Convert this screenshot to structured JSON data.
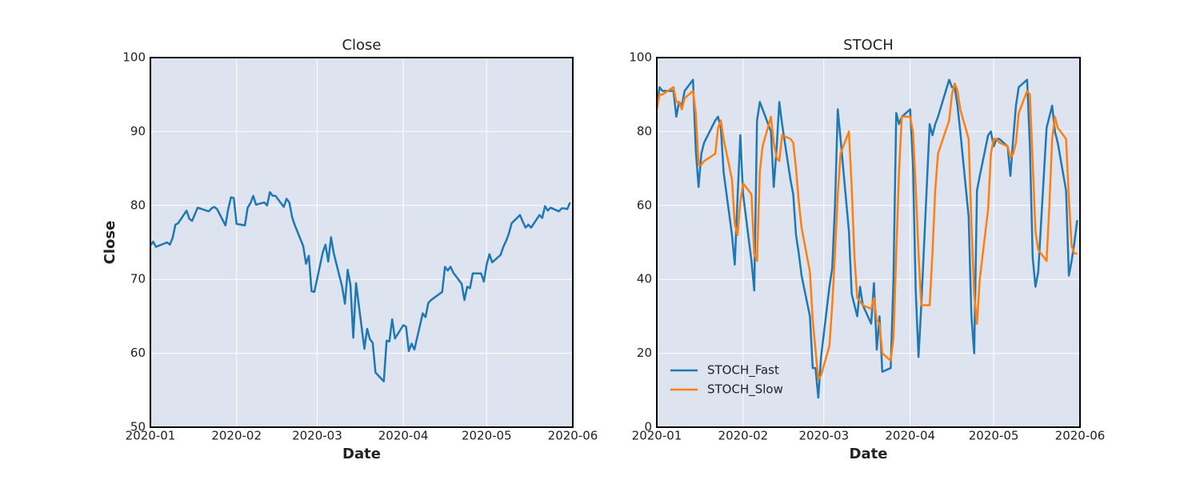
{
  "chart_data": [
    {
      "type": "line",
      "title": "Close",
      "xlabel": "Date",
      "ylabel": "Close",
      "x": [
        0,
        1,
        2,
        6,
        7,
        8,
        9,
        10,
        13,
        14,
        15,
        16,
        17,
        21,
        22,
        23,
        24,
        27,
        28,
        29,
        30,
        31,
        34,
        35,
        36,
        37,
        38,
        41,
        42,
        43,
        44,
        45,
        48,
        49,
        50,
        51,
        52,
        55,
        56,
        57,
        58,
        59,
        62,
        63,
        64,
        65,
        66,
        69,
        70,
        71,
        72,
        73,
        74,
        77,
        78,
        79,
        80,
        81,
        84,
        85,
        86,
        87,
        88,
        91,
        92,
        93,
        94,
        95,
        98,
        99,
        100,
        101,
        105,
        106,
        107,
        108,
        109,
        112,
        113,
        114,
        115,
        116,
        119,
        120,
        121,
        122,
        123,
        126,
        127,
        128,
        129,
        130,
        133,
        134,
        135,
        136,
        137,
        140,
        141,
        142,
        143,
        144,
        147,
        148,
        149,
        150,
        151
      ],
      "series": [
        {
          "name": "Close",
          "color": "#1f77b4",
          "values": [
            74.6,
            75.1,
            74.4,
            75.0,
            74.7,
            75.6,
            77.4,
            77.6,
            79.3,
            78.2,
            77.9,
            78.8,
            79.7,
            79.2,
            79.6,
            79.8,
            79.5,
            77.3,
            79.5,
            81.1,
            81.0,
            77.5,
            77.3,
            79.7,
            80.3,
            81.3,
            80.1,
            80.4,
            80.0,
            81.8,
            81.3,
            81.3,
            79.8,
            80.9,
            80.4,
            78.4,
            77.3,
            74.5,
            72.1,
            73.2,
            68.4,
            68.3,
            73.6,
            74.7,
            72.4,
            75.7,
            73.5,
            69.0,
            66.7,
            71.3,
            69.2,
            62.1,
            69.5,
            60.6,
            63.3,
            61.9,
            61.4,
            57.4,
            56.2,
            61.7,
            61.6,
            64.6,
            62.0,
            63.8,
            63.6,
            60.3,
            61.3,
            60.5,
            65.4,
            64.9,
            66.8,
            67.2,
            68.3,
            71.7,
            71.2,
            71.7,
            70.9,
            69.4,
            67.2,
            69.0,
            68.8,
            70.8,
            70.8,
            69.7,
            72.0,
            73.4,
            72.3,
            73.3,
            74.4,
            75.2,
            76.2,
            77.6,
            78.7,
            77.8,
            77.0,
            77.4,
            77.0,
            78.7,
            78.3,
            79.9,
            79.3,
            79.7,
            79.2,
            79.6,
            79.6,
            79.5,
            80.4
          ]
        }
      ],
      "xlim": [
        0,
        152
      ],
      "xticks": [
        {
          "value": 0,
          "label": "2020-01"
        },
        {
          "value": 31,
          "label": "2020-02"
        },
        {
          "value": 60,
          "label": "2020-03"
        },
        {
          "value": 91,
          "label": "2020-04"
        },
        {
          "value": 121,
          "label": "2020-05"
        },
        {
          "value": 152,
          "label": "2020-06"
        }
      ],
      "ylim": [
        50,
        100
      ],
      "yticks": [
        50,
        60,
        70,
        80,
        90,
        100
      ],
      "grid": true
    },
    {
      "type": "line",
      "title": "STOCH",
      "xlabel": "Date",
      "x": [
        0,
        1,
        2,
        6,
        7,
        8,
        9,
        10,
        13,
        14,
        15,
        16,
        17,
        21,
        22,
        23,
        24,
        27,
        28,
        29,
        30,
        31,
        34,
        35,
        36,
        37,
        38,
        41,
        42,
        43,
        44,
        45,
        48,
        49,
        50,
        51,
        52,
        55,
        56,
        57,
        58,
        59,
        62,
        63,
        64,
        65,
        66,
        69,
        70,
        71,
        72,
        73,
        74,
        77,
        78,
        79,
        80,
        81,
        84,
        85,
        86,
        87,
        88,
        91,
        92,
        93,
        94,
        95,
        98,
        99,
        100,
        101,
        105,
        106,
        107,
        108,
        109,
        112,
        113,
        114,
        115,
        116,
        119,
        120,
        121,
        122,
        123,
        126,
        127,
        128,
        129,
        130,
        133,
        134,
        135,
        136,
        137,
        140,
        141,
        142,
        143,
        144,
        147,
        148,
        149,
        150,
        151
      ],
      "series": [
        {
          "name": "STOCH_Fast",
          "color": "#1f77b4",
          "values": [
            87,
            92,
            91,
            91,
            84,
            88,
            87,
            91,
            94,
            75,
            65,
            74,
            77,
            83,
            84,
            81,
            69,
            52,
            44,
            62,
            79,
            63,
            45,
            37,
            83,
            88,
            86,
            80,
            65,
            75,
            88,
            82,
            67,
            63,
            52,
            47,
            41,
            30,
            16,
            16,
            8,
            19,
            38,
            43,
            60,
            86,
            78,
            53,
            36,
            33,
            30,
            38,
            33,
            28,
            39,
            21,
            30,
            15,
            16,
            40,
            85,
            82,
            84,
            86,
            71,
            37,
            19,
            33,
            82,
            79,
            82,
            84,
            94,
            92,
            92,
            87,
            80,
            57,
            30,
            20,
            64,
            68,
            79,
            80,
            76,
            78,
            78,
            76,
            68,
            78,
            87,
            92,
            94,
            76,
            46,
            38,
            42,
            81,
            84,
            87,
            80,
            77,
            64,
            41,
            45,
            50,
            56
          ]
        },
        {
          "name": "STOCH_Slow",
          "color": "#ff7f0e",
          "values": [
            86,
            90,
            90,
            92,
            88,
            88,
            86,
            89,
            91,
            85,
            71,
            71,
            72,
            74,
            81,
            83,
            78,
            67,
            55,
            52,
            61,
            66,
            63,
            47,
            45,
            69,
            76,
            84,
            77,
            73,
            72,
            79,
            78,
            77,
            70,
            61,
            54,
            42,
            29,
            21,
            13,
            14,
            22,
            33,
            47,
            63,
            74,
            80,
            65,
            46,
            35,
            34,
            33,
            32,
            35,
            29,
            28,
            20,
            18,
            24,
            47,
            69,
            84,
            84,
            80,
            65,
            47,
            33,
            33,
            47,
            64,
            74,
            83,
            90,
            93,
            91,
            86,
            78,
            55,
            36,
            28,
            40,
            59,
            74,
            78,
            78,
            77,
            76,
            73,
            74,
            77,
            85,
            91,
            90,
            72,
            53,
            48,
            45,
            60,
            78,
            84,
            81,
            78,
            62,
            49,
            47,
            47
          ]
        }
      ],
      "xlim": [
        0,
        152
      ],
      "xticks": [
        {
          "value": 0,
          "label": "2020-01"
        },
        {
          "value": 31,
          "label": "2020-02"
        },
        {
          "value": 60,
          "label": "2020-03"
        },
        {
          "value": 91,
          "label": "2020-04"
        },
        {
          "value": 121,
          "label": "2020-05"
        },
        {
          "value": 152,
          "label": "2020-06"
        }
      ],
      "ylim": [
        0,
        100
      ],
      "yticks": [
        0,
        20,
        40,
        60,
        80,
        100
      ],
      "grid": true,
      "legend": "lower left"
    }
  ]
}
